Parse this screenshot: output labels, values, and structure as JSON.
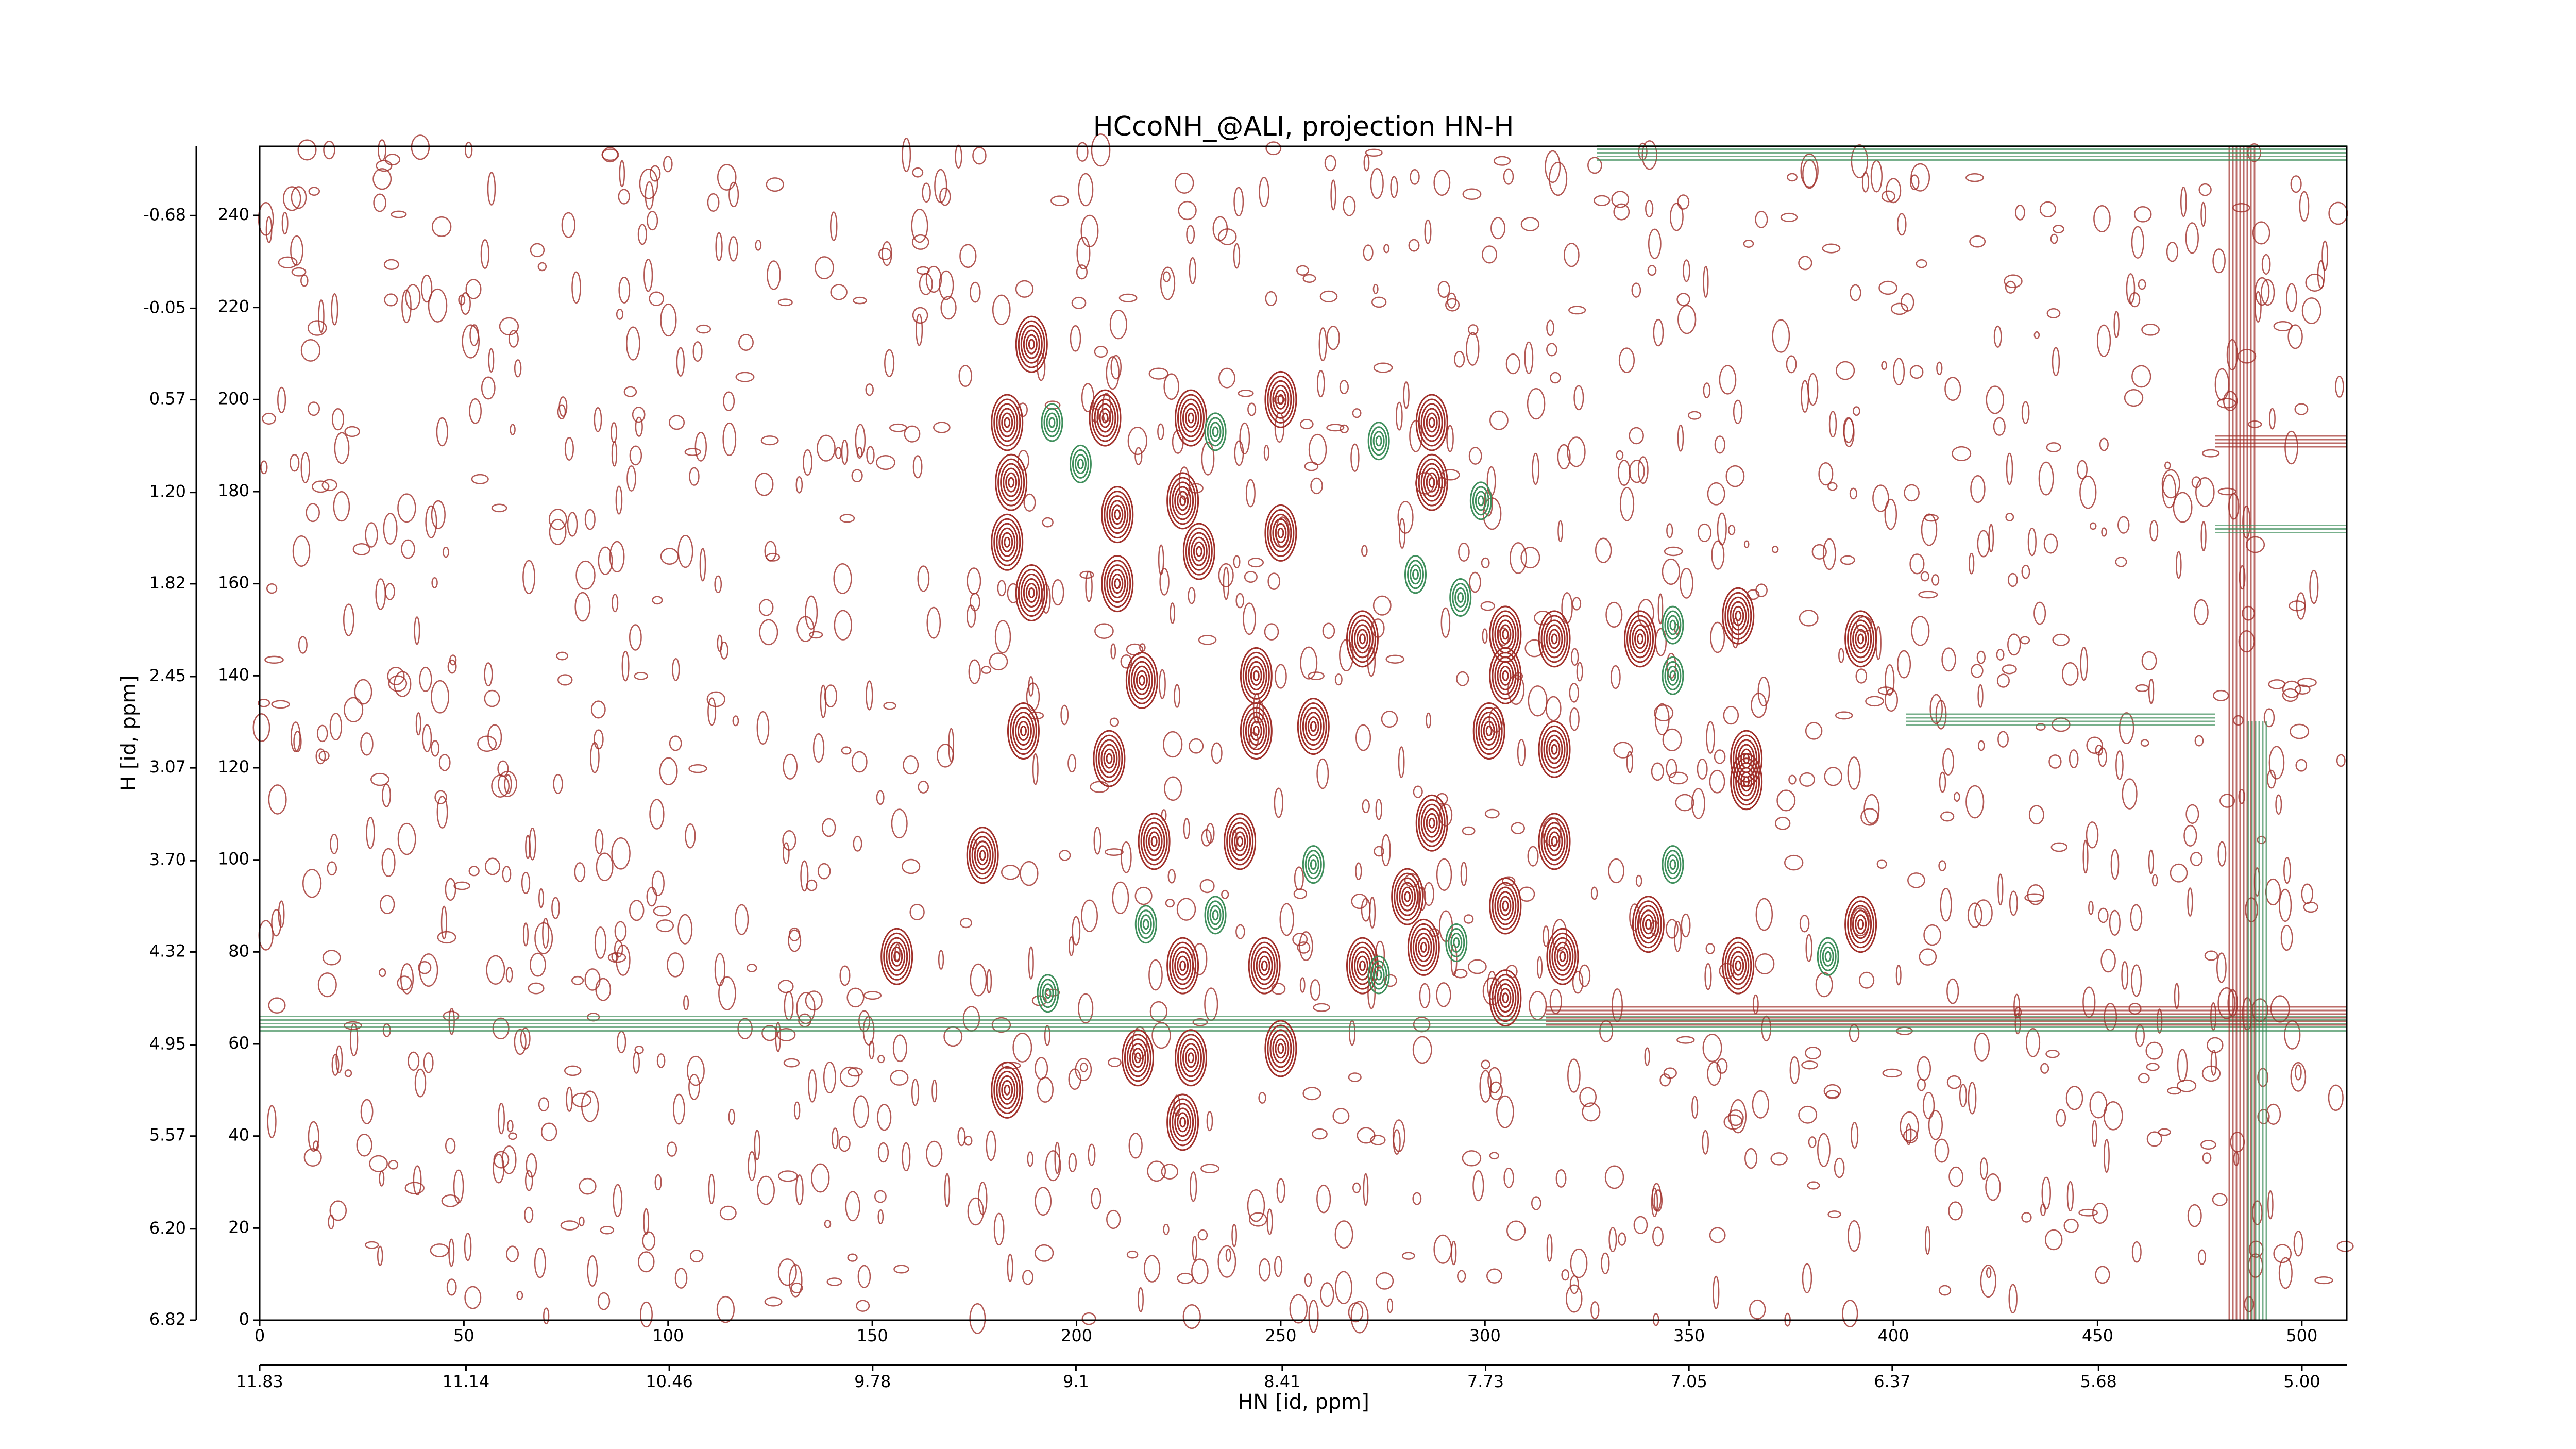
{
  "chart_data": {
    "type": "contour",
    "title": "HCcoNH_@ALI, projection HN-H",
    "xlabel": "HN [id, ppm]",
    "ylabel": "H [id, ppm]",
    "xlim": [
      0,
      511
    ],
    "xticks": [
      0,
      50,
      100,
      150,
      200,
      250,
      300,
      350,
      400,
      450,
      500
    ],
    "ylim": [
      0,
      255
    ],
    "yticks": [
      0,
      20,
      40,
      60,
      80,
      100,
      120,
      140,
      160,
      180,
      200,
      220,
      240
    ],
    "x2lim": [
      11.83,
      4.85
    ],
    "x2ticks": [
      11.83,
      11.14,
      10.46,
      9.78,
      9.1,
      8.41,
      7.73,
      7.05,
      6.37,
      5.68,
      {
        "value": 5,
        "label": "5.00"
      }
    ],
    "y2lim": [
      6.82,
      -1.15
    ],
    "y2ticks": [
      6.82,
      {
        "value": 6.2,
        "label": "6.20"
      },
      5.57,
      4.95,
      4.32,
      {
        "value": 3.7,
        "label": "3.70"
      },
      3.07,
      2.45,
      1.82,
      {
        "value": 1.2,
        "label": "1.20"
      },
      0.57,
      -0.05,
      -0.68
    ],
    "peaks": [
      {
        "color": "#a0302a",
        "x": [
          189,
          183,
          207,
          228,
          250,
          184,
          183,
          189,
          210,
          210,
          226,
          230,
          250,
          287,
          287,
          270,
          305,
          317,
          338,
          362,
          392,
          216,
          244,
          305,
          187,
          208,
          244,
          258,
          301,
          317,
          364,
          364,
          177,
          219,
          240,
          287,
          317,
          281,
          305,
          226,
          246,
          270,
          285,
          319,
          362,
          392,
          340,
          156,
          215,
          228,
          250,
          183,
          226,
          305
        ],
        "y": [
          212,
          195,
          196,
          196,
          200,
          182,
          169,
          158,
          175,
          160,
          178,
          167,
          171,
          195,
          182,
          148,
          149,
          148,
          148,
          153,
          148,
          139,
          140,
          140,
          128,
          122,
          128,
          129,
          128,
          124,
          122,
          117,
          101,
          104,
          104,
          108,
          104,
          92,
          90,
          77,
          77,
          77,
          81,
          79,
          77,
          86,
          86,
          79,
          57,
          57,
          59,
          50,
          43,
          70
        ]
      },
      {
        "color": "#3f8f5c",
        "x": [
          194,
          201,
          234,
          274,
          299,
          283,
          294,
          346,
          346,
          258,
          346,
          293,
          384,
          193,
          217,
          234,
          274
        ],
        "y": [
          195,
          186,
          193,
          191,
          178,
          162,
          157,
          151,
          140,
          99,
          99,
          82,
          79,
          71,
          86,
          88,
          75
        ]
      }
    ]
  }
}
